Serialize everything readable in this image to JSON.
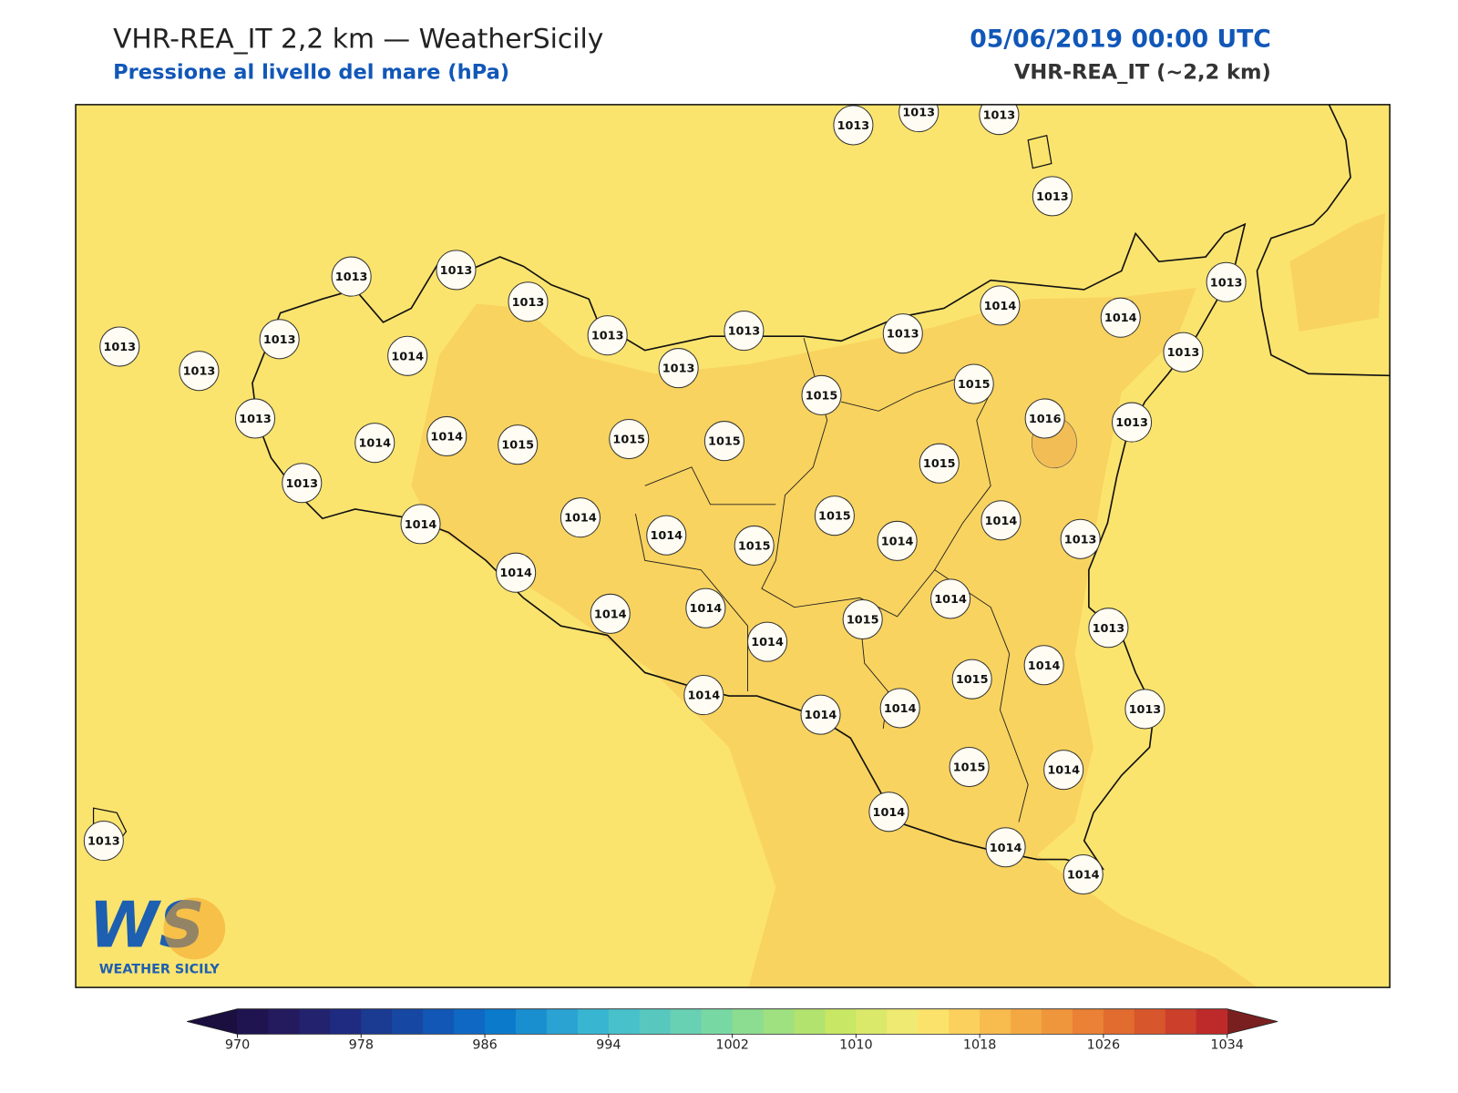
{
  "header": {
    "title": "VHR-REA_IT 2,2 km — WeatherSicily",
    "subtitle": "Pressione al livello del mare (hPa)",
    "datetime": "05/06/2019 00:00 UTC",
    "model": "VHR-REA_IT (~2,2 km)"
  },
  "map": {
    "stations": [
      1013,
      1013,
      1013,
      1013,
      1013,
      1013,
      1013,
      1013,
      1013,
      1013,
      1014,
      1013,
      1013,
      1013,
      1013,
      1014,
      1014,
      1013,
      1013,
      1013,
      1014,
      1014,
      1015,
      1015,
      1015,
      1015,
      1015,
      1016,
      1013,
      1013,
      1015,
      1014,
      1014,
      1014,
      1015,
      1015,
      1014,
      1014,
      1013,
      1014,
      1014,
      1014,
      1014,
      1015,
      1014,
      1013,
      1015,
      1014,
      1014,
      1014,
      1014,
      1013,
      1015,
      1014,
      1014,
      1014,
      1014,
      1013
    ]
  },
  "logo": {
    "mark": "WS",
    "name": "WEATHER SICILY"
  },
  "colorbar": {
    "lim": [
      970,
      1034
    ],
    "ticks": [
      970,
      978,
      986,
      994,
      1002,
      1010,
      1018,
      1026,
      1034
    ],
    "under": "#1a0f3f",
    "over": "#7a1f1f",
    "colors": [
      "#1f1450",
      "#241a5e",
      "#22226e",
      "#1f2b80",
      "#1b3a92",
      "#1648a3",
      "#1257b5",
      "#0f68c4",
      "#0c7acb",
      "#1a8fcf",
      "#2aa2d2",
      "#38b6d1",
      "#48c1ca",
      "#58c8bf",
      "#68d0b3",
      "#78d8a4",
      "#8cdc92",
      "#9fe080",
      "#b3e36f",
      "#c8e764",
      "#dbe96b",
      "#eeea72",
      "#fbe36b",
      "#fbd05c",
      "#f7bb4e",
      "#f3a843",
      "#ef963c",
      "#ea8135",
      "#e26b2f",
      "#d8562c",
      "#cb3f2b",
      "#bd2a29"
    ]
  }
}
